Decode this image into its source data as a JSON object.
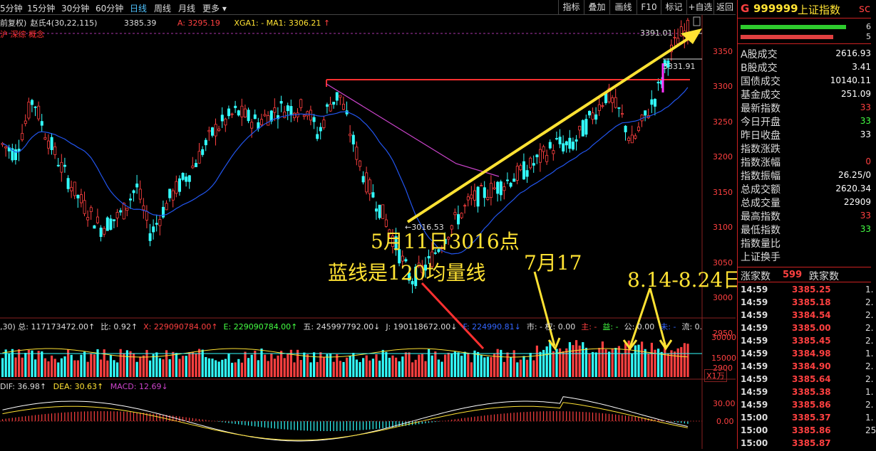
{
  "toolbar": {
    "periods": [
      "5分钟",
      "15分钟",
      "30分钟",
      "60分钟",
      "日线",
      "周线",
      "月线",
      "更多 ▾"
    ],
    "active_period": "日线",
    "buttons": [
      "指标",
      "叠加",
      "画线",
      "F10",
      "标记",
      "+自选",
      "返回"
    ]
  },
  "chart_header": {
    "adjust": "前复权)",
    "formula": "赵氏4(30,22,115)",
    "value1": "3385.39",
    "a_label": "A: 3295.19",
    "xga_label": "XGA1: - MA1: 3306.21",
    "tags": "沪 深综 概念"
  },
  "main_chart": {
    "price_ticks": [
      "3350",
      "3300",
      "3250",
      "3200",
      "3150",
      "3100",
      "3050",
      "3000",
      "2950",
      "2900"
    ],
    "high_label": "3391.01",
    "mid_label": "3331.91",
    "low_label": "←3016.53"
  },
  "volume": {
    "header": [
      {
        "text": ",30) 总: 117173472.00↑",
        "color": "#dddddd"
      },
      {
        "text": "比: 0.92↑",
        "color": "#dddddd"
      },
      {
        "text": "X: 229090784.00↑",
        "color": "#ff4040"
      },
      {
        "text": "E: 229090784.00↑",
        "color": "#44ff44"
      },
      {
        "text": "五: 245997792.00↓",
        "color": "#dddddd"
      },
      {
        "text": "J: 190118672.00↓",
        "color": "#dddddd"
      },
      {
        "text": "F: 224990.81↓",
        "color": "#3366ff"
      },
      {
        "text": "市: - 权: 0.00",
        "color": "#dddddd"
      },
      {
        "text": "主: -",
        "color": "#ff4040"
      },
      {
        "text": "益: -",
        "color": "#44ff44"
      },
      {
        "text": "公: 0.00",
        "color": "#dddddd"
      },
      {
        "text": "未: -",
        "color": "#3366ff"
      },
      {
        "text": "流: 0.",
        "color": "#dddddd"
      }
    ],
    "ticks": [
      "30000",
      "15000"
    ],
    "unit": "X1万"
  },
  "macd": {
    "dif": "DIF: 36.98↑",
    "dea": "DEA: 30.63↑",
    "macd": "MACD: 12.69↓",
    "ticks": [
      "30.00",
      "0.00"
    ]
  },
  "annotations": {
    "a1": "5月11日3016点",
    "a2": "蓝线是120均量线",
    "a3": "7月17",
    "a4": "8.14-8.24日"
  },
  "right_panel": {
    "code_prefix": "G",
    "code": "999999",
    "name": "上证指数",
    "cut": "sc",
    "bar_nums": [
      "6",
      "5"
    ],
    "rows": [
      {
        "label": "A股成交",
        "value": "2616.93",
        "color": "#ffffff"
      },
      {
        "label": "B股成交",
        "value": "3.41",
        "color": "#ffffff"
      },
      {
        "label": "国债成交",
        "value": "10140.11",
        "color": "#ffffff"
      },
      {
        "label": "基金成交",
        "value": "251.09",
        "color": "#ffffff"
      },
      {
        "label": "最新指数",
        "value": "33",
        "color": "#ff4040"
      },
      {
        "label": "今日开盘",
        "value": "33",
        "color": "#44ff44"
      },
      {
        "label": "昨日收盘",
        "value": "33",
        "color": "#ffffff"
      },
      {
        "label": "指数涨跌",
        "value": "",
        "color": "#ff4040"
      },
      {
        "label": "指数涨幅",
        "value": "0",
        "color": "#ff4040"
      },
      {
        "label": "指数振幅",
        "value": "26.25/0",
        "color": "#ffffff"
      },
      {
        "label": "总成交额",
        "value": "2620.34",
        "color": "#ffffff"
      },
      {
        "label": "总成交量",
        "value": "22909",
        "color": "#ffffff"
      },
      {
        "label": "最高指数",
        "value": "33",
        "color": "#ff4040"
      },
      {
        "label": "最低指数",
        "value": "33",
        "color": "#44ff44"
      },
      {
        "label": "指数量比",
        "value": "",
        "color": "#ffffff"
      },
      {
        "label": "上证换手",
        "value": "",
        "color": "#ffffff"
      }
    ],
    "updown": {
      "up_label": "涨家数",
      "up_value": "599",
      "down_label": "跌家数"
    },
    "ticks": [
      {
        "time": "14:59",
        "price": "3385.25",
        "vol": "1."
      },
      {
        "time": "14:59",
        "price": "3385.18",
        "vol": "2."
      },
      {
        "time": "14:59",
        "price": "3384.54",
        "vol": "2."
      },
      {
        "time": "14:59",
        "price": "3385.00",
        "vol": "2."
      },
      {
        "time": "14:59",
        "price": "3385.45",
        "vol": "2."
      },
      {
        "time": "14:59",
        "price": "3384.98",
        "vol": "1."
      },
      {
        "time": "14:59",
        "price": "3384.90",
        "vol": "2."
      },
      {
        "time": "14:59",
        "price": "3385.64",
        "vol": "2."
      },
      {
        "time": "14:59",
        "price": "3385.38",
        "vol": "1."
      },
      {
        "time": "14:59",
        "price": "3385.86",
        "vol": "2."
      },
      {
        "time": "15:00",
        "price": "3385.37",
        "vol": "1."
      },
      {
        "time": "15:00",
        "price": "3385.86",
        "vol": "25"
      },
      {
        "time": "15:00",
        "price": "3385.87",
        "vol": ""
      }
    ]
  },
  "colors": {
    "up": "#ff4040",
    "down": "#33ffff",
    "ma_blue": "#2255ee",
    "ma_magenta": "#cc44cc",
    "annotation": "#ffe233",
    "grid": "#882222"
  }
}
